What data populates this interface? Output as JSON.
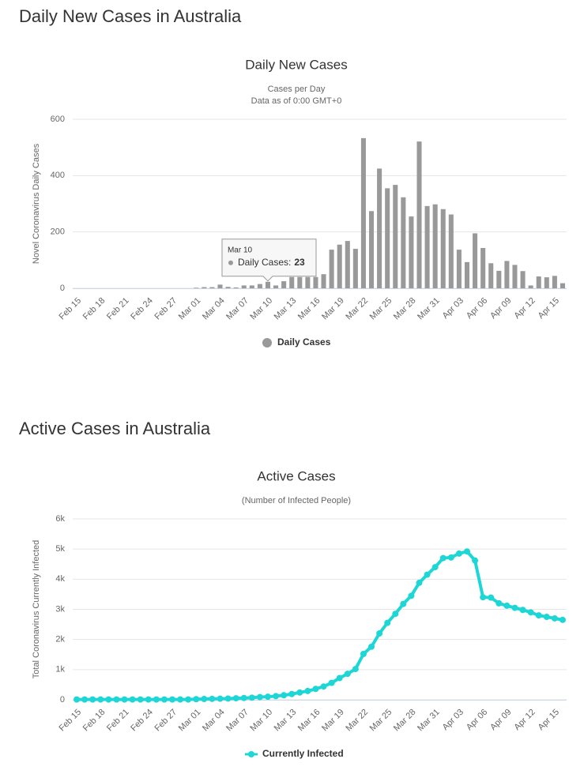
{
  "page": {
    "headings": [
      "Daily New Cases in Australia",
      "Active Cases in Australia"
    ]
  },
  "chart_data": [
    {
      "type": "bar",
      "title": "Daily New Cases",
      "subtitle": [
        "Cases per Day",
        "Data as of 0:00 GMT+0"
      ],
      "y_label": "Novel Coronavirus Daily Cases",
      "categories": [
        "Feb 15",
        null,
        null,
        "Feb 18",
        null,
        null,
        "Feb 21",
        null,
        null,
        "Feb 24",
        null,
        null,
        "Feb 27",
        null,
        null,
        "Mar 01",
        null,
        null,
        "Mar 04",
        null,
        null,
        "Mar 07",
        null,
        null,
        "Mar 10",
        null,
        null,
        "Mar 13",
        null,
        null,
        "Mar 16",
        null,
        null,
        "Mar 19",
        null,
        null,
        "Mar 22",
        null,
        null,
        "Mar 25",
        null,
        null,
        "Mar 28",
        null,
        null,
        "Mar 31",
        null,
        null,
        "Apr 03",
        null,
        null,
        "Apr 06",
        null,
        null,
        "Apr 09",
        null,
        null,
        "Apr 12",
        null,
        null,
        "Apr 15",
        null
      ],
      "series": [
        {
          "name": "Daily Cases",
          "color": "#999999",
          "values": [
            0,
            0,
            0,
            0,
            0,
            0,
            0,
            0,
            0,
            0,
            0,
            0,
            0,
            0,
            0,
            2,
            4,
            4,
            13,
            5,
            3,
            10,
            10,
            15,
            23,
            10,
            25,
            40,
            40,
            40,
            40,
            50,
            137,
            155,
            168,
            140,
            533,
            274,
            425,
            355,
            367,
            323,
            255,
            521,
            292,
            298,
            281,
            262,
            137,
            93,
            195,
            143,
            89,
            62,
            97,
            83,
            61,
            10,
            42,
            39,
            44,
            18
          ]
        }
      ],
      "ylim": [
        0,
        600
      ],
      "yticks": [
        0,
        200,
        400,
        600
      ],
      "grid": true,
      "tooltip": {
        "category": "Mar 10",
        "label": "Daily Cases:",
        "value": 23
      }
    },
    {
      "type": "line",
      "title": "Active Cases",
      "subtitle": [
        "(Number of Infected People)"
      ],
      "y_label": "Total Coronavirus Currently Infected",
      "categories": [
        "Feb 15",
        null,
        null,
        "Feb 18",
        null,
        null,
        "Feb 21",
        null,
        null,
        "Feb 24",
        null,
        null,
        "Feb 27",
        null,
        null,
        "Mar 01",
        null,
        null,
        "Mar 04",
        null,
        null,
        "Mar 07",
        null,
        null,
        "Mar 10",
        null,
        null,
        "Mar 13",
        null,
        null,
        "Mar 16",
        null,
        null,
        "Mar 19",
        null,
        null,
        "Mar 22",
        null,
        null,
        "Mar 25",
        null,
        null,
        "Mar 28",
        null,
        null,
        "Mar 31",
        null,
        null,
        "Apr 03",
        null,
        null,
        "Apr 06",
        null,
        null,
        "Apr 09",
        null,
        null,
        "Apr 12",
        null,
        null,
        "Apr 15",
        null
      ],
      "series": [
        {
          "name": "Currently Infected",
          "color": "#1fd6d6",
          "values": [
            10,
            10,
            10,
            10,
            10,
            10,
            10,
            10,
            10,
            10,
            10,
            10,
            10,
            10,
            10,
            20,
            25,
            30,
            35,
            40,
            50,
            60,
            70,
            90,
            100,
            120,
            150,
            190,
            240,
            290,
            360,
            440,
            560,
            720,
            860,
            1020,
            1520,
            1760,
            2200,
            2550,
            2850,
            3180,
            3450,
            3880,
            4150,
            4400,
            4700,
            4720,
            4850,
            4920,
            4620,
            3400,
            3390,
            3200,
            3120,
            3050,
            2980,
            2900,
            2800,
            2750,
            2700,
            2650
          ]
        }
      ],
      "ylim": [
        0,
        6000
      ],
      "yticks": [
        0,
        {
          "value": 1000,
          "label": "1k"
        },
        {
          "value": 2000,
          "label": "2k"
        },
        {
          "value": 3000,
          "label": "3k"
        },
        {
          "value": 4000,
          "label": "4k"
        },
        {
          "value": 5000,
          "label": "5k"
        },
        {
          "value": 6000,
          "label": "6k"
        }
      ],
      "grid": true
    }
  ]
}
